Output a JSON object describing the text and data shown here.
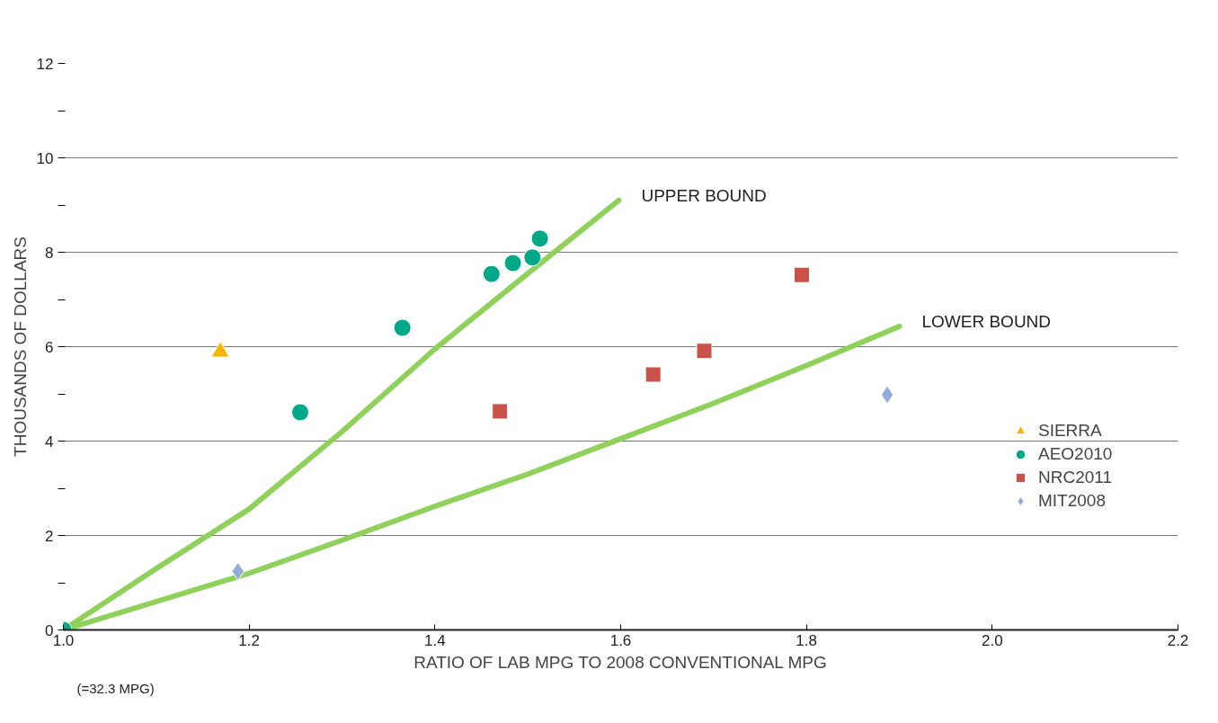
{
  "chart_data": {
    "type": "scatter",
    "xlabel": "RATIO OF LAB MPG TO 2008 CONVENTIONAL MPG",
    "ylabel": "THOUSANDS OF DOLLARS",
    "xlim": [
      1.0,
      2.2
    ],
    "xticks": [
      {
        "value": 1.0,
        "label": "1.0"
      },
      {
        "value": 1.2,
        "label": "1.2"
      },
      {
        "value": 1.4,
        "label": "1.4"
      },
      {
        "value": 1.6,
        "label": "1.6"
      },
      {
        "value": 1.8,
        "label": "1.8"
      },
      {
        "value": 2.0,
        "label": "2.0"
      },
      {
        "value": 2.2,
        "label": "2.2"
      }
    ],
    "ylim": [
      0,
      12
    ],
    "yticks": [
      0,
      {
        "value": 1,
        "label": null
      },
      2,
      {
        "value": 3,
        "label": null
      },
      4,
      {
        "value": 5,
        "label": null
      },
      6,
      {
        "value": 7,
        "label": null
      },
      8,
      {
        "value": 9,
        "label": null
      },
      10,
      {
        "value": 11,
        "label": null
      },
      12
    ],
    "grid": "y",
    "legend": "right",
    "annotations": [
      "(=32.3 MPG)"
    ],
    "series": [
      {
        "name": "UPPER BOUND",
        "type": "line",
        "color": "#8fd15a",
        "x": [
          1.0,
          1.1,
          1.2,
          1.3,
          1.4,
          1.5,
          1.598
        ],
        "values": [
          0,
          1.3,
          2.56,
          4.2,
          5.95,
          7.55,
          9.1
        ]
      },
      {
        "name": "LOWER BOUND",
        "type": "line",
        "color": "#8fd15a",
        "x": [
          1.0,
          1.1,
          1.2,
          1.3,
          1.4,
          1.5,
          1.6,
          1.7,
          1.8,
          1.9
        ],
        "values": [
          0,
          0.6,
          1.2,
          1.9,
          2.62,
          3.3,
          4.05,
          4.8,
          5.6,
          6.43
        ]
      },
      {
        "name": "SIERRA",
        "color": "#f7b500",
        "marker": "triangle",
        "x": [
          1.169
        ],
        "values": [
          5.89
        ]
      },
      {
        "name": "AEO2010",
        "color": "#00a88a",
        "marker": "circle",
        "x": [
          1.0,
          1.255,
          1.365,
          1.461,
          1.484,
          1.505,
          1.513
        ],
        "values": [
          0,
          4.61,
          6.4,
          7.54,
          7.77,
          7.89,
          8.29
        ]
      },
      {
        "name": "NRC2011",
        "color": "#c9524b",
        "marker": "square",
        "x": [
          1.47,
          1.635,
          1.69,
          1.795
        ],
        "values": [
          4.63,
          5.41,
          5.91,
          7.52
        ]
      },
      {
        "name": "MIT2008",
        "color": "#93acd8",
        "marker": "diamond",
        "x": [
          1.188,
          1.887
        ],
        "values": [
          1.24,
          4.98
        ]
      }
    ]
  }
}
